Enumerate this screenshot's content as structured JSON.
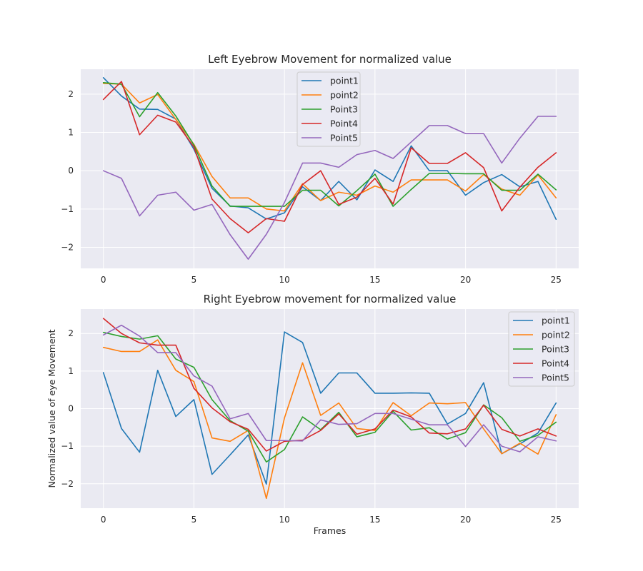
{
  "chart_data": [
    {
      "type": "line",
      "title": "Left Eyebrow Movement for normalized value",
      "xlabel": "",
      "ylabel": "",
      "xlim": [
        -1.25,
        26.25
      ],
      "ylim": [
        -2.55,
        2.65
      ],
      "xticks": [
        0,
        5,
        10,
        15,
        20,
        25
      ],
      "yticks": [
        -2,
        -1,
        0,
        1,
        2
      ],
      "grid": true,
      "legend_position": "top-center",
      "x": [
        0,
        1,
        2,
        3,
        4,
        5,
        6,
        7,
        8,
        9,
        10,
        11,
        12,
        13,
        14,
        15,
        16,
        17,
        18,
        19,
        20,
        21,
        22,
        23,
        24,
        25
      ],
      "series": [
        {
          "name": "point1",
          "color": "#1f77b4",
          "values": [
            2.43,
            1.95,
            1.61,
            1.6,
            1.35,
            0.56,
            -0.46,
            -0.92,
            -0.97,
            -1.26,
            -1.1,
            -0.42,
            -0.78,
            -0.28,
            -0.76,
            0.02,
            -0.28,
            0.65,
            0.0,
            0.0,
            -0.64,
            -0.31,
            -0.1,
            -0.42,
            -0.28,
            -1.27
          ]
        },
        {
          "name": "point2",
          "color": "#ff7f0e",
          "values": [
            2.28,
            2.26,
            1.77,
            1.99,
            1.34,
            0.69,
            -0.15,
            -0.71,
            -0.71,
            -1.0,
            -1.05,
            -0.34,
            -0.78,
            -0.56,
            -0.64,
            -0.4,
            -0.56,
            -0.24,
            -0.24,
            -0.24,
            -0.53,
            -0.1,
            -0.48,
            -0.64,
            -0.11,
            -0.71
          ]
        },
        {
          "name": "Point3",
          "color": "#2ca02c",
          "values": [
            2.3,
            2.26,
            1.41,
            2.04,
            1.43,
            0.67,
            -0.4,
            -0.93,
            -0.93,
            -0.93,
            -0.93,
            -0.51,
            -0.51,
            -0.92,
            -0.52,
            -0.09,
            -0.93,
            -0.49,
            -0.07,
            -0.07,
            -0.08,
            -0.08,
            -0.51,
            -0.51,
            -0.09,
            -0.5
          ]
        },
        {
          "name": "Point4",
          "color": "#d62728",
          "values": [
            1.86,
            2.33,
            0.94,
            1.45,
            1.27,
            0.62,
            -0.74,
            -1.25,
            -1.62,
            -1.25,
            -1.32,
            -0.36,
            0.0,
            -0.88,
            -0.69,
            -0.2,
            -0.87,
            0.6,
            0.19,
            0.19,
            0.47,
            0.08,
            -1.05,
            -0.43,
            0.09,
            0.47
          ]
        },
        {
          "name": "Point5",
          "color": "#9467bd",
          "values": [
            0.0,
            -0.2,
            -1.18,
            -0.64,
            -0.56,
            -1.03,
            -0.88,
            -1.67,
            -2.31,
            -1.66,
            -0.83,
            0.2,
            0.2,
            0.09,
            0.42,
            0.53,
            0.32,
            0.75,
            1.18,
            1.18,
            0.97,
            0.97,
            0.2,
            0.85,
            1.42,
            1.42
          ]
        }
      ]
    },
    {
      "type": "line",
      "title": "Right Eyebrow movement for normalized value",
      "xlabel": "Frames",
      "ylabel": "Normalized value of eye Movement",
      "xlim": [
        -1.25,
        26.25
      ],
      "ylim": [
        -2.65,
        2.65
      ],
      "xticks": [
        0,
        5,
        10,
        15,
        20,
        25
      ],
      "yticks": [
        -2,
        -1,
        0,
        1,
        2
      ],
      "grid": true,
      "legend_position": "top-right",
      "x": [
        0,
        1,
        2,
        3,
        4,
        5,
        6,
        7,
        8,
        9,
        10,
        11,
        12,
        13,
        14,
        15,
        16,
        17,
        18,
        19,
        20,
        21,
        22,
        23,
        24,
        25
      ],
      "series": [
        {
          "name": "point1",
          "color": "#1f77b4",
          "values": [
            0.96,
            -0.53,
            -1.16,
            1.02,
            -0.21,
            0.24,
            -1.75,
            -1.23,
            -0.7,
            -2.01,
            2.04,
            1.76,
            0.41,
            0.95,
            0.95,
            0.41,
            0.41,
            0.42,
            0.41,
            -0.41,
            -0.13,
            0.69,
            -1.2,
            -0.94,
            -0.65,
            0.15
          ]
        },
        {
          "name": "point2",
          "color": "#ff7f0e",
          "values": [
            1.63,
            1.52,
            1.52,
            1.83,
            1.02,
            0.72,
            -0.78,
            -0.87,
            -0.58,
            -2.39,
            -0.25,
            1.22,
            -0.18,
            0.15,
            -0.53,
            -0.58,
            0.16,
            -0.19,
            0.15,
            0.13,
            0.16,
            -0.54,
            -1.2,
            -0.92,
            -1.21,
            -0.16
          ]
        },
        {
          "name": "Point3",
          "color": "#2ca02c",
          "values": [
            2.03,
            1.92,
            1.85,
            1.94,
            1.32,
            1.1,
            0.24,
            -0.32,
            -0.6,
            -1.42,
            -1.09,
            -0.22,
            -0.56,
            -0.1,
            -0.75,
            -0.63,
            -0.07,
            -0.57,
            -0.51,
            -0.81,
            -0.64,
            0.1,
            -0.24,
            -0.87,
            -0.71,
            -0.36
          ]
        },
        {
          "name": "Point4",
          "color": "#d62728",
          "values": [
            2.4,
            2.0,
            1.75,
            1.69,
            1.69,
            0.54,
            0.02,
            -0.35,
            -0.55,
            -1.13,
            -0.87,
            -0.84,
            -0.58,
            -0.14,
            -0.68,
            -0.54,
            -0.04,
            -0.22,
            -0.65,
            -0.67,
            -0.54,
            0.09,
            -0.55,
            -0.73,
            -0.54,
            -0.73
          ]
        },
        {
          "name": "Point5",
          "color": "#9467bd",
          "values": [
            1.96,
            2.22,
            1.93,
            1.49,
            1.49,
            0.87,
            0.6,
            -0.27,
            -0.13,
            -0.85,
            -0.85,
            -0.86,
            -0.3,
            -0.42,
            -0.4,
            -0.13,
            -0.13,
            -0.28,
            -0.43,
            -0.43,
            -1.01,
            -0.43,
            -1.0,
            -1.15,
            -0.75,
            -0.86
          ]
        }
      ]
    }
  ]
}
